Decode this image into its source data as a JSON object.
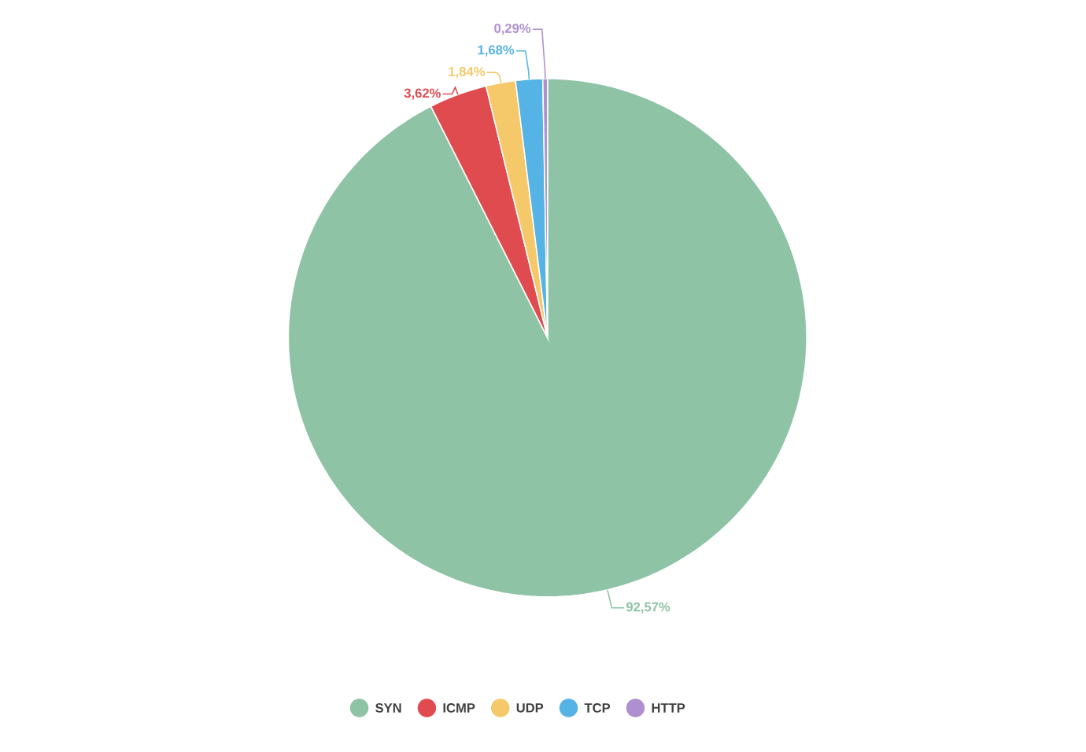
{
  "chart_data": {
    "type": "pie",
    "categories": [
      "SYN",
      "ICMP",
      "UDP",
      "TCP",
      "HTTP"
    ],
    "values": [
      92.57,
      3.62,
      1.84,
      1.68,
      0.29
    ],
    "colors": [
      "#8fc3a6",
      "#e04b4f",
      "#f5c96a",
      "#55b3e6",
      "#ae8fd0"
    ],
    "value_labels": [
      "92,57%",
      "3,62%",
      "1,84%",
      "1,68%",
      "0,29%"
    ],
    "legend": "bottom"
  }
}
